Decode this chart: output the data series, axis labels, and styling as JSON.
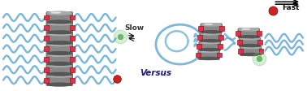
{
  "bg_color": "#ffffff",
  "disc_color_main": "#888888",
  "disc_color_dark": "#555555",
  "disc_color_light": "#aaaaaa",
  "chain_color": "#6aaed6",
  "conn_color": "#e03050",
  "green_color": "#66bb66",
  "red_color": "#cc2222",
  "text_color_blue": "#1a1a7a",
  "text_color_black": "#111111",
  "slow_label": "Slow",
  "fast_label": "Fast",
  "versus_label": "Versus",
  "label_fs": 6.5,
  "versus_fs": 7.5
}
